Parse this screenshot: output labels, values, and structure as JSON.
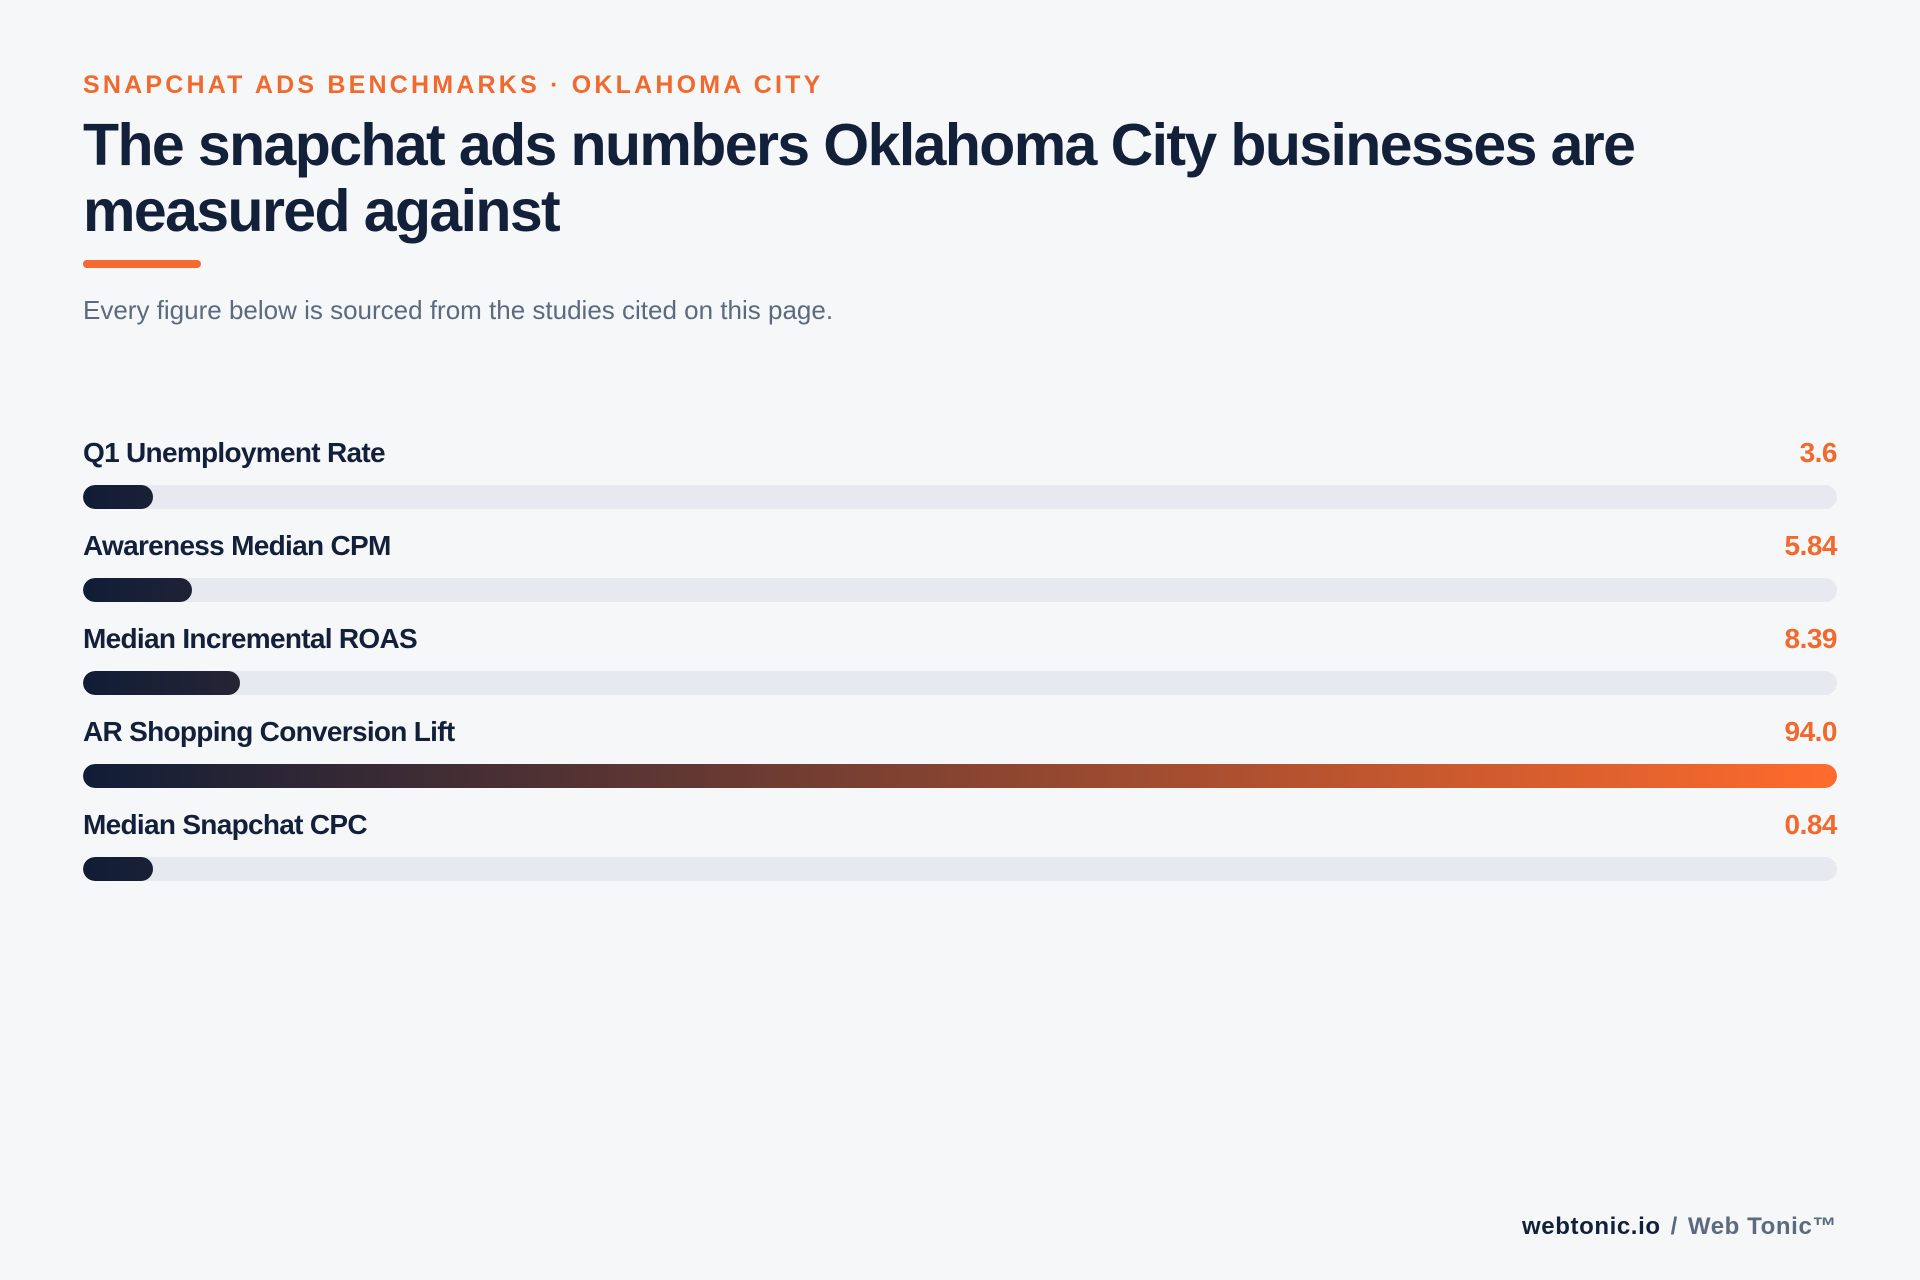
{
  "header": {
    "eyebrow": "SNAPCHAT ADS BENCHMARKS · OKLAHOMA CITY",
    "title": "The snapchat ads numbers Oklahoma City businesses are measured against",
    "subtitle": "Every figure below is sourced from the studies cited on this page."
  },
  "colors": {
    "accent": "#f2692e",
    "navy": "#13203a",
    "track": "#e6e9ef",
    "gradient_start": "#101d36",
    "gradient_end": "#ff6b2c"
  },
  "chart_data": {
    "type": "bar",
    "orientation": "horizontal",
    "categories": [
      "Q1 Unemployment Rate",
      "Awareness Median CPM",
      "Median Incremental ROAS",
      "AR Shopping Conversion Lift",
      "Median Snapchat CPC"
    ],
    "values": [
      3.6,
      5.84,
      8.39,
      94.0,
      0.84
    ],
    "value_labels": [
      "3.6",
      "5.84",
      "8.39",
      "94.0",
      "0.84"
    ],
    "xlim": [
      0,
      94.0
    ],
    "grid": false,
    "legend": "none"
  },
  "footer": {
    "domain": "webtonic.io",
    "separator": "/",
    "brand": "Web Tonic™"
  }
}
